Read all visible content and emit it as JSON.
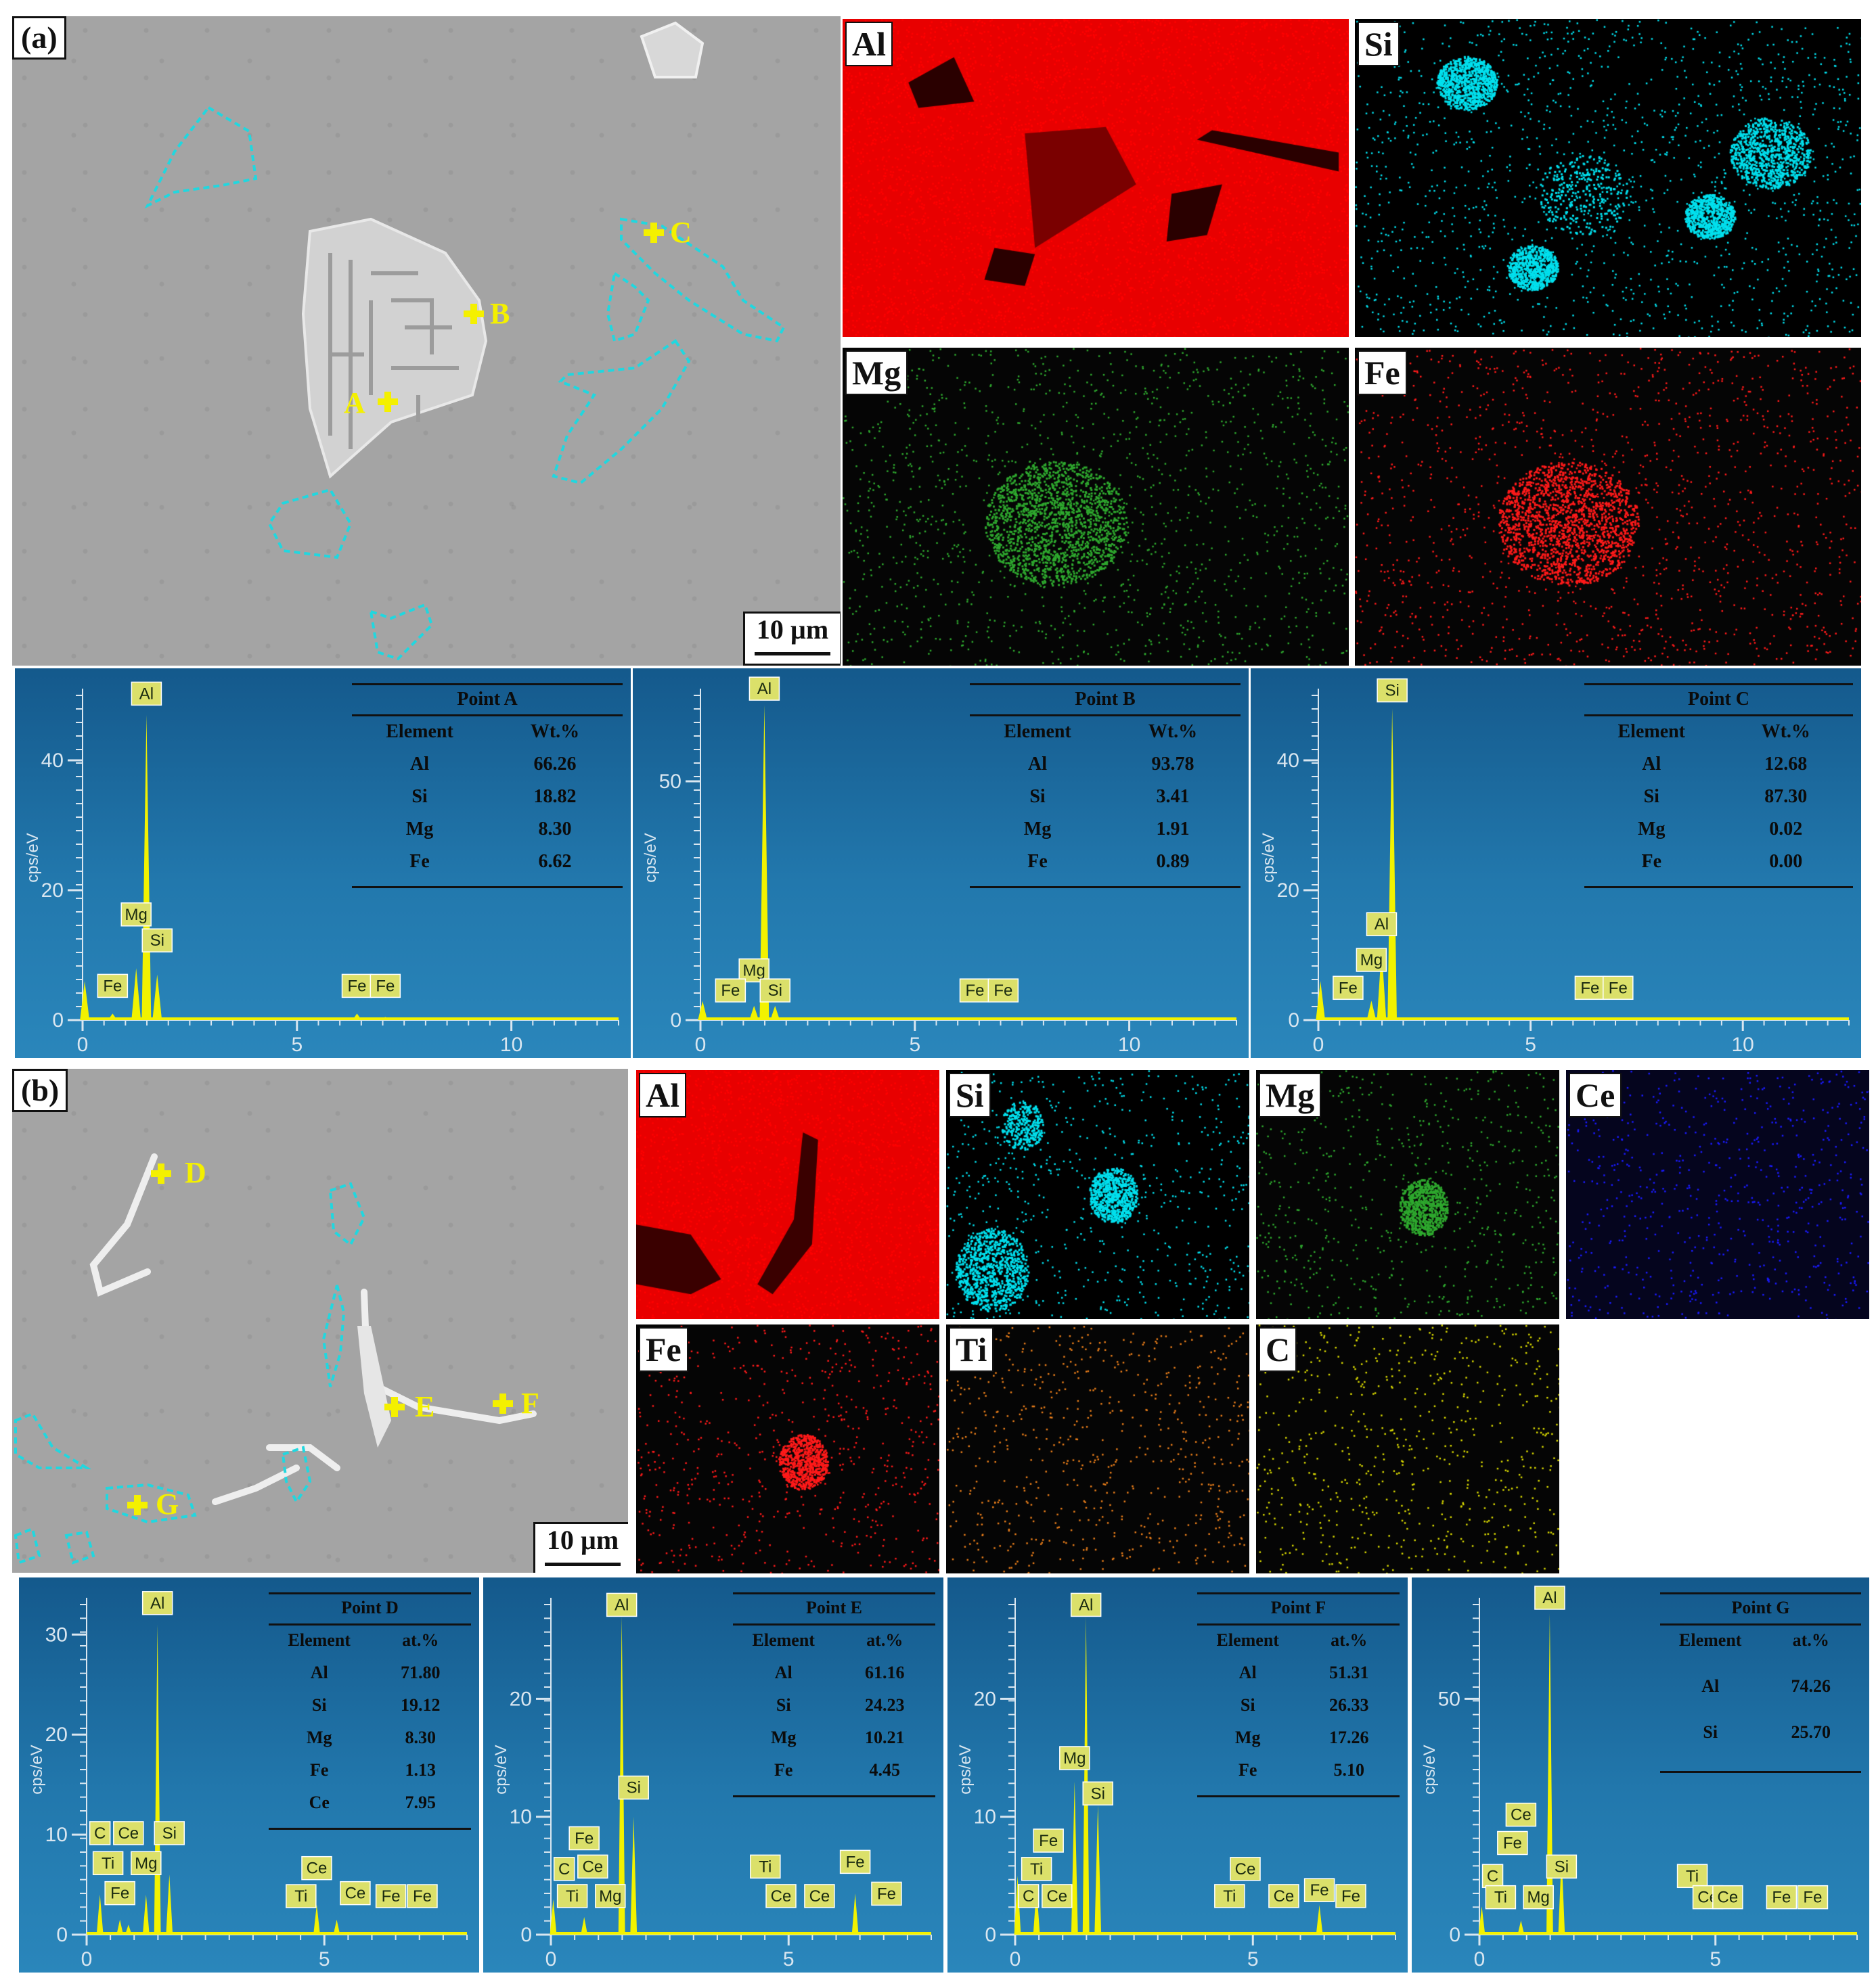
{
  "panel_a": {
    "label": "(a)",
    "scale": "10 µm",
    "points": [
      "A",
      "B",
      "C"
    ],
    "maps": [
      {
        "el": "Al",
        "color": "#ff0000",
        "bg": "#e80000"
      },
      {
        "el": "Si",
        "color": "#00e0ee",
        "bg": "#000000"
      },
      {
        "el": "Mg",
        "color": "#2ea82e",
        "bg": "#050505"
      },
      {
        "el": "Fe",
        "color": "#ff1a1a",
        "bg": "#050505"
      }
    ],
    "spectra": [
      {
        "title": "Point A",
        "unit": "Wt.%",
        "yticks": [
          "0",
          "20",
          "40"
        ],
        "ymax": 50,
        "rows": [
          [
            "Al",
            "66.26"
          ],
          [
            "Si",
            "18.82"
          ],
          [
            "Mg",
            "8.30"
          ],
          [
            "Fe",
            "6.62"
          ]
        ],
        "xticks": [
          "0",
          "5",
          "10"
        ],
        "peaks": [
          {
            "e": 1.49,
            "h": 47
          },
          {
            "e": 1.25,
            "h": 8
          },
          {
            "e": 1.74,
            "h": 7
          },
          {
            "e": 0.7,
            "h": 1
          },
          {
            "e": 6.4,
            "h": 1
          },
          {
            "e": 7.06,
            "h": 0.5
          },
          {
            "e": 0.05,
            "h": 6
          }
        ],
        "tags": [
          {
            "t": "Al",
            "e": 1.49,
            "y": 48.5
          },
          {
            "t": "Mg",
            "e": 1.25,
            "y": 14.5
          },
          {
            "t": "Si",
            "e": 1.74,
            "y": 10.5
          },
          {
            "t": "Fe",
            "e": 0.7,
            "y": 3.5
          },
          {
            "t": "Fe",
            "e": 6.4,
            "y": 3.5
          },
          {
            "t": "Fe",
            "e": 7.06,
            "y": 3.5
          }
        ]
      },
      {
        "title": "Point B",
        "unit": "Wt.%",
        "yticks": [
          "0",
          "50"
        ],
        "ymax": 68,
        "rows": [
          [
            "Al",
            "93.78"
          ],
          [
            "Si",
            "3.41"
          ],
          [
            "Mg",
            "1.91"
          ],
          [
            "Fe",
            "0.89"
          ]
        ],
        "xticks": [
          "0",
          "5",
          "10"
        ],
        "peaks": [
          {
            "e": 1.49,
            "h": 66
          },
          {
            "e": 1.25,
            "h": 3
          },
          {
            "e": 1.74,
            "h": 3
          },
          {
            "e": 0.7,
            "h": 0.6
          },
          {
            "e": 0.05,
            "h": 4
          }
        ],
        "tags": [
          {
            "t": "Al",
            "e": 1.49,
            "y": 67
          },
          {
            "t": "Mg",
            "e": 1.25,
            "y": 8
          },
          {
            "t": "Si",
            "e": 1.74,
            "y": 3.8
          },
          {
            "t": "Fe",
            "e": 0.7,
            "y": 3.8
          },
          {
            "t": "Fe",
            "e": 6.4,
            "y": 3.8
          },
          {
            "t": "Fe",
            "e": 7.06,
            "y": 3.8
          }
        ]
      },
      {
        "title": "Point C",
        "unit": "Wt.%",
        "yticks": [
          "0",
          "20",
          "40"
        ],
        "ymax": 50,
        "rows": [
          [
            "Al",
            "12.68"
          ],
          [
            "Si",
            "87.30"
          ],
          [
            "Mg",
            "0.02"
          ],
          [
            "Fe",
            "0.00"
          ]
        ],
        "xticks": [
          "0",
          "5",
          "10"
        ],
        "peaks": [
          {
            "e": 1.74,
            "h": 48
          },
          {
            "e": 1.49,
            "h": 11
          },
          {
            "e": 1.25,
            "h": 3
          },
          {
            "e": 0.05,
            "h": 6
          }
        ],
        "tags": [
          {
            "t": "Si",
            "e": 1.74,
            "y": 49
          },
          {
            "t": "Al",
            "e": 1.49,
            "y": 13
          },
          {
            "t": "Mg",
            "e": 1.25,
            "y": 7.5
          },
          {
            "t": "Fe",
            "e": 0.7,
            "y": 3.2
          },
          {
            "t": "Fe",
            "e": 6.4,
            "y": 3.2
          },
          {
            "t": "Fe",
            "e": 7.06,
            "y": 3.2
          }
        ]
      }
    ]
  },
  "panel_b": {
    "label": "(b)",
    "scale": "10 µm",
    "points": [
      "D",
      "E",
      "F",
      "G"
    ],
    "maps": [
      {
        "el": "Al",
        "color": "#ff0000",
        "bg": "#e80000"
      },
      {
        "el": "Si",
        "color": "#00e0ee",
        "bg": "#000000"
      },
      {
        "el": "Mg",
        "color": "#2ea82e",
        "bg": "#050505"
      },
      {
        "el": "Ce",
        "color": "#1a1aff",
        "bg": "#05051e"
      },
      {
        "el": "Fe",
        "color": "#ff1a1a",
        "bg": "#050505"
      },
      {
        "el": "Ti",
        "color": "#e87d1a",
        "bg": "#050505"
      },
      {
        "el": "C",
        "color": "#d8d800",
        "bg": "#050505"
      }
    ],
    "spectra": [
      {
        "title": "Point D",
        "unit": "at.%",
        "yticks": [
          "0",
          "10",
          "20",
          "30"
        ],
        "ymax": 33,
        "rows": [
          [
            "Al",
            "71.80"
          ],
          [
            "Si",
            "19.12"
          ],
          [
            "Mg",
            "8.30"
          ],
          [
            "Fe",
            "1.13"
          ],
          [
            "Ce",
            "7.95"
          ]
        ],
        "xticks": [
          "0",
          "5"
        ],
        "peaks": [
          {
            "e": 1.49,
            "h": 31
          },
          {
            "e": 1.74,
            "h": 6
          },
          {
            "e": 1.25,
            "h": 4
          },
          {
            "e": 0.28,
            "h": 4
          },
          {
            "e": 4.84,
            "h": 3
          },
          {
            "e": 5.26,
            "h": 1.5
          },
          {
            "e": 0.88,
            "h": 1
          },
          {
            "e": 0.7,
            "h": 1.5
          }
        ],
        "tags": [
          {
            "t": "Al",
            "e": 1.49,
            "y": 32
          },
          {
            "t": "C",
            "e": 0.28,
            "y": 9
          },
          {
            "t": "Ce",
            "e": 0.88,
            "y": 9
          },
          {
            "t": "Si",
            "e": 1.74,
            "y": 9
          },
          {
            "t": "Ti",
            "e": 0.45,
            "y": 6
          },
          {
            "t": "Mg",
            "e": 1.25,
            "y": 6
          },
          {
            "t": "Fe",
            "e": 0.7,
            "y": 3
          },
          {
            "t": "Ce",
            "e": 4.84,
            "y": 5.5
          },
          {
            "t": "Ti",
            "e": 4.51,
            "y": 2.7
          },
          {
            "t": "Ce",
            "e": 5.65,
            "y": 3
          },
          {
            "t": "Fe",
            "e": 6.4,
            "y": 2.7
          },
          {
            "t": "Fe",
            "e": 7.06,
            "y": 2.7
          }
        ]
      },
      {
        "title": "Point E",
        "unit": "at.%",
        "yticks": [
          "0",
          "10",
          "20"
        ],
        "ymax": 28,
        "rows": [
          [
            "Al",
            "61.16"
          ],
          [
            "Si",
            "24.23"
          ],
          [
            "Mg",
            "10.21"
          ],
          [
            "Fe",
            "4.45"
          ]
        ],
        "xticks": [
          "0",
          "5"
        ],
        "peaks": [
          {
            "e": 1.49,
            "h": 27
          },
          {
            "e": 1.74,
            "h": 10
          },
          {
            "e": 6.4,
            "h": 3.5
          },
          {
            "e": 0.7,
            "h": 1.5
          },
          {
            "e": 0.05,
            "h": 3
          }
        ],
        "tags": [
          {
            "t": "Al",
            "e": 1.49,
            "y": 27
          },
          {
            "t": "Si",
            "e": 1.74,
            "y": 11.5
          },
          {
            "t": "Fe",
            "e": 0.7,
            "y": 7.2
          },
          {
            "t": "C",
            "e": 0.28,
            "y": 4.6
          },
          {
            "t": "Ce",
            "e": 0.88,
            "y": 4.8
          },
          {
            "t": "Ti",
            "e": 0.45,
            "y": 2.3
          },
          {
            "t": "Mg",
            "e": 1.25,
            "y": 2.3
          },
          {
            "t": "Ti",
            "e": 4.51,
            "y": 4.8
          },
          {
            "t": "Ce",
            "e": 4.84,
            "y": 2.3
          },
          {
            "t": "Ce",
            "e": 5.65,
            "y": 2.3
          },
          {
            "t": "Fe",
            "e": 6.4,
            "y": 5.2
          },
          {
            "t": "Fe",
            "e": 7.06,
            "y": 2.5
          }
        ]
      },
      {
        "title": "Point F",
        "unit": "at.%",
        "yticks": [
          "0",
          "10",
          "20"
        ],
        "ymax": 28,
        "rows": [
          [
            "Al",
            "51.31"
          ],
          [
            "Si",
            "26.33"
          ],
          [
            "Mg",
            "17.26"
          ],
          [
            "Fe",
            "5.10"
          ]
        ],
        "xticks": [
          "0",
          "5"
        ],
        "peaks": [
          {
            "e": 1.49,
            "h": 27
          },
          {
            "e": 1.74,
            "h": 11
          },
          {
            "e": 1.25,
            "h": 13
          },
          {
            "e": 6.4,
            "h": 2.5
          },
          {
            "e": 0.45,
            "h": 4
          },
          {
            "e": 0.05,
            "h": 5
          }
        ],
        "tags": [
          {
            "t": "Al",
            "e": 1.49,
            "y": 27
          },
          {
            "t": "Mg",
            "e": 1.25,
            "y": 14
          },
          {
            "t": "Si",
            "e": 1.74,
            "y": 11
          },
          {
            "t": "Fe",
            "e": 0.7,
            "y": 7
          },
          {
            "t": "Ti",
            "e": 0.45,
            "y": 4.6
          },
          {
            "t": "C",
            "e": 0.28,
            "y": 2.3
          },
          {
            "t": "Ce",
            "e": 0.88,
            "y": 2.3
          },
          {
            "t": "Ce",
            "e": 4.84,
            "y": 4.6
          },
          {
            "t": "Ti",
            "e": 4.51,
            "y": 2.3
          },
          {
            "t": "Ce",
            "e": 5.65,
            "y": 2.3
          },
          {
            "t": "Fe",
            "e": 6.4,
            "y": 2.8
          },
          {
            "t": "Fe",
            "e": 7.06,
            "y": 2.3
          }
        ]
      },
      {
        "title": "Point G",
        "unit": "at.%",
        "yticks": [
          "0",
          "50"
        ],
        "ymax": 70,
        "rows": [
          [
            "Al",
            "74.26"
          ],
          [
            "Si",
            "25.70"
          ]
        ],
        "xticks": [
          "0",
          "5"
        ],
        "peaks": [
          {
            "e": 1.49,
            "h": 68
          },
          {
            "e": 1.74,
            "h": 17
          },
          {
            "e": 0.05,
            "h": 6
          },
          {
            "e": 0.88,
            "h": 3
          }
        ],
        "tags": [
          {
            "t": "Al",
            "e": 1.49,
            "y": 69
          },
          {
            "t": "Ce",
            "e": 0.88,
            "y": 23
          },
          {
            "t": "Fe",
            "e": 0.7,
            "y": 17
          },
          {
            "t": "C",
            "e": 0.28,
            "y": 10
          },
          {
            "t": "Si",
            "e": 1.74,
            "y": 12
          },
          {
            "t": "Ti",
            "e": 0.45,
            "y": 5.5
          },
          {
            "t": "Mg",
            "e": 1.25,
            "y": 5.5
          },
          {
            "t": "Ti",
            "e": 4.51,
            "y": 10
          },
          {
            "t": "Ce",
            "e": 4.84,
            "y": 5.5
          },
          {
            "t": "Ce",
            "e": 5.26,
            "y": 5.5
          },
          {
            "t": "Fe",
            "e": 6.4,
            "y": 5.5
          },
          {
            "t": "Fe",
            "e": 7.06,
            "y": 5.5
          }
        ]
      }
    ]
  },
  "common": {
    "ylabel": "cps/eV",
    "tag_bg": "#dbe06a",
    "peak_color": "#f2f200"
  }
}
